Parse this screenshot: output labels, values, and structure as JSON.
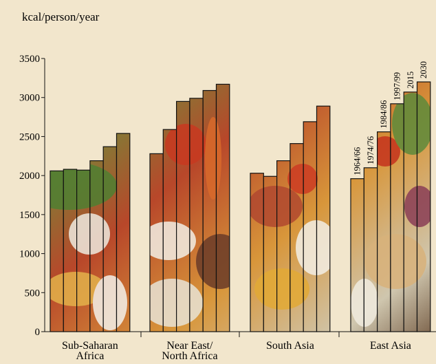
{
  "chart_data": {
    "type": "bar",
    "title": "",
    "ylabel": "kcal/person/year",
    "ylim": [
      0,
      3500
    ],
    "yticks": [
      0,
      500,
      1000,
      1500,
      2000,
      2500,
      3000,
      3500
    ],
    "grid": false,
    "legend": "none",
    "categories": [
      [
        "Sub-Saharan",
        "Africa"
      ],
      [
        "Near East/",
        "North Africa"
      ],
      [
        "South Asia"
      ],
      [
        "East Asia"
      ]
    ],
    "series_labels": [
      "1964/66",
      "1974/76",
      "1984/86",
      "1997/99",
      "2015",
      "2030"
    ],
    "series_labels_shown_on": "East Asia",
    "values": [
      [
        2060,
        2080,
        2070,
        2190,
        2370,
        2540
      ],
      [
        2280,
        2590,
        2950,
        2990,
        3090,
        3170
      ],
      [
        2030,
        1990,
        2190,
        2410,
        2690,
        2890
      ],
      [
        1960,
        2100,
        2560,
        2920,
        3070,
        3200
      ]
    ]
  }
}
